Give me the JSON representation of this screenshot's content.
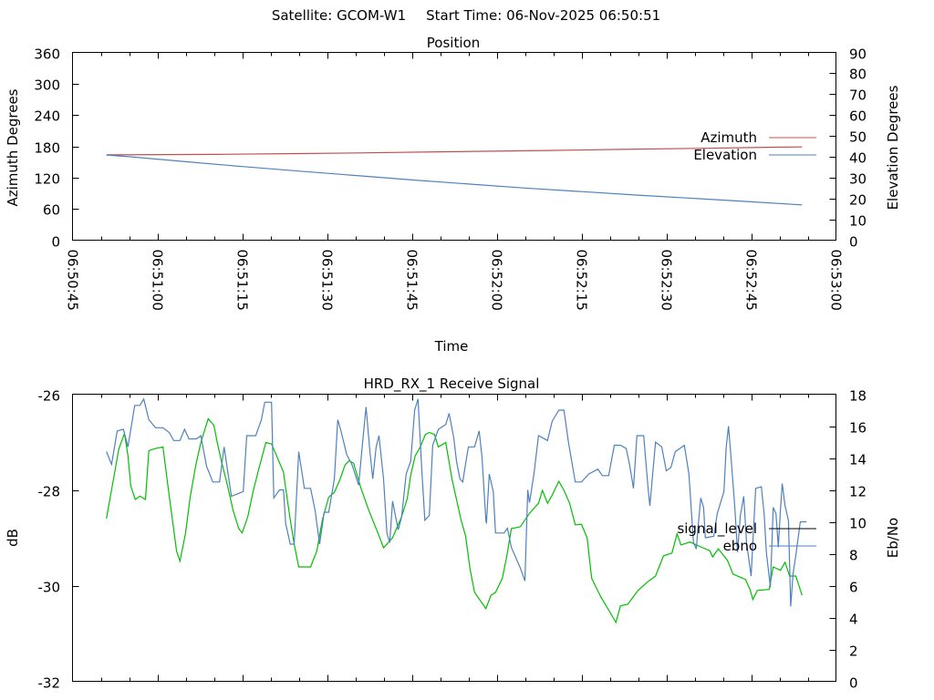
{
  "header": {
    "satellite_label": "Satellite: GCOM-W1",
    "start_time_label": "Start Time: 06-Nov-2025 06:50:51"
  },
  "chart_data": [
    {
      "type": "line",
      "title": "Position",
      "xlabel": "Time",
      "ylabel": "Azimuth Degrees",
      "y2label": "Elevation Degrees",
      "x_unit": "seconds after 06:50:45",
      "xlim": [
        0,
        135
      ],
      "ylim": [
        0,
        360
      ],
      "y2lim": [
        0,
        90
      ],
      "x_ticks": [
        {
          "t": 0,
          "label": "06:50:45"
        },
        {
          "t": 15,
          "label": "06:51:00"
        },
        {
          "t": 30,
          "label": "06:51:15"
        },
        {
          "t": 45,
          "label": "06:51:30"
        },
        {
          "t": 60,
          "label": "06:51:45"
        },
        {
          "t": 75,
          "label": "06:52:00"
        },
        {
          "t": 90,
          "label": "06:52:15"
        },
        {
          "t": 105,
          "label": "06:52:30"
        },
        {
          "t": 120,
          "label": "06:52:45"
        },
        {
          "t": 135,
          "label": "06:53:00"
        }
      ],
      "y_ticks": [
        "0",
        "60",
        "120",
        "180",
        "240",
        "300",
        "360"
      ],
      "y2_ticks": [
        "0",
        "10",
        "20",
        "30",
        "40",
        "50",
        "60",
        "70",
        "80",
        "90"
      ],
      "legend_position": "right",
      "grid": false,
      "series": [
        {
          "name": "Azimuth",
          "axis": "y",
          "color": "#c0504d",
          "x": [
            6,
            25,
            40,
            52,
            66,
            84,
            97,
            110,
            123,
            129
          ],
          "values": [
            163.5,
            164.5,
            166,
            167.5,
            169.5,
            172,
            174,
            176,
            178,
            178.7
          ]
        },
        {
          "name": "Elevation",
          "axis": "y2",
          "color": "#4f81bd",
          "x": [
            6,
            10,
            20,
            30,
            40,
            50,
            60,
            70,
            80,
            90,
            100,
            110,
            120,
            129
          ],
          "values": [
            40.8,
            40.0,
            37.6,
            35.3,
            33.1,
            31.0,
            28.9,
            26.9,
            25.0,
            23.3,
            21.6,
            20.0,
            18.4,
            16.9
          ]
        }
      ]
    },
    {
      "type": "line",
      "title": "HRD_RX_1 Receive Signal",
      "xlabel": "",
      "ylabel": "dB",
      "y2label": "Eb/No",
      "x_unit": "seconds after 06:50:45",
      "xlim": [
        0,
        135
      ],
      "ylim": [
        -32,
        -26
      ],
      "y2lim": [
        0,
        18
      ],
      "y_ticks": [
        "-32",
        "-30",
        "-28",
        "-26"
      ],
      "y2_ticks": [
        "0",
        "2",
        "4",
        "6",
        "8",
        "10",
        "12",
        "14",
        "16",
        "18"
      ],
      "legend_position": "right",
      "grid": false,
      "series": [
        {
          "name": "signal_level",
          "axis": "y",
          "color": "#00c000",
          "legend_color": "#000000",
          "x": [
            6.0,
            6.6,
            7.4,
            8.2,
            9.2,
            9.8,
            10.3,
            11.1,
            11.9,
            12.9,
            13.5,
            14.4,
            16.0,
            16.8,
            17.6,
            18.4,
            19.0,
            20.0,
            20.8,
            21.8,
            22.7,
            24.0,
            25.0,
            25.6,
            26.3,
            27.3,
            28.4,
            29.4,
            30.0,
            31.0,
            31.9,
            32.9,
            34.2,
            35.2,
            36.1,
            37.3,
            37.7,
            38.5,
            39.2,
            40.0,
            42.1,
            43.2,
            44.2,
            45.3,
            46.3,
            47.3,
            48.2,
            48.9,
            49.7,
            51.0,
            52.4,
            54.0,
            55.0,
            56.6,
            58.2,
            59.2,
            59.8,
            60.6,
            61.5,
            62.4,
            63.1,
            64.0,
            64.7,
            66.0,
            67.1,
            68.7,
            69.5,
            70.3,
            71.1,
            73.1,
            74.0,
            74.8,
            76.0,
            76.8,
            77.6,
            79.2,
            80.8,
            82.4,
            83.1,
            84.0,
            84.8,
            86.0,
            86.9,
            87.9,
            88.9,
            90.0,
            91.0,
            91.8,
            93.4,
            95.3,
            96.1,
            96.9,
            98.2,
            100.0,
            101.8,
            103.1,
            104.5,
            106.0,
            106.9,
            107.6,
            109.2,
            111.1,
            112.7,
            113.2,
            114.2,
            115.8,
            116.8,
            119.0,
            119.8,
            120.3,
            121.1,
            123.2,
            123.9,
            125.2,
            126.0,
            126.8,
            127.9,
            129.0
          ],
          "values": [
            -28.6,
            -28.2,
            -27.67,
            -27.14,
            -26.82,
            -27.29,
            -27.92,
            -28.2,
            -28.13,
            -28.2,
            -27.18,
            -27.14,
            -27.1,
            -27.86,
            -28.56,
            -29.28,
            -29.49,
            -28.9,
            -28.15,
            -27.48,
            -27.01,
            -26.51,
            -26.65,
            -27.01,
            -27.39,
            -27.86,
            -28.43,
            -28.81,
            -28.9,
            -28.56,
            -28.05,
            -27.58,
            -27.01,
            -27.04,
            -27.29,
            -27.63,
            -27.96,
            -28.62,
            -29.13,
            -29.61,
            -29.61,
            -29.28,
            -28.62,
            -28.15,
            -28.05,
            -27.78,
            -27.48,
            -27.39,
            -27.44,
            -27.96,
            -28.43,
            -28.9,
            -29.21,
            -29.0,
            -28.56,
            -28.18,
            -27.69,
            -27.29,
            -27.1,
            -26.84,
            -26.8,
            -26.84,
            -27.1,
            -27.01,
            -27.77,
            -28.62,
            -28.96,
            -29.66,
            -30.14,
            -30.48,
            -30.2,
            -30.14,
            -29.85,
            -29.38,
            -28.81,
            -28.77,
            -28.49,
            -28.28,
            -28.01,
            -28.28,
            -28.11,
            -27.82,
            -28.01,
            -28.28,
            -28.73,
            -28.72,
            -29.0,
            -29.85,
            -30.23,
            -30.61,
            -30.77,
            -30.42,
            -30.39,
            -30.1,
            -29.91,
            -29.8,
            -29.38,
            -29.32,
            -28.92,
            -29.15,
            -29.09,
            -29.19,
            -29.27,
            -29.4,
            -29.23,
            -29.47,
            -29.76,
            -29.87,
            -30.08,
            -30.29,
            -30.1,
            -30.08,
            -29.61,
            -29.68,
            -29.51,
            -29.8,
            -29.8,
            -30.2
          ]
        },
        {
          "name": "ebno",
          "axis": "y2",
          "color": "#4f81bd",
          "legend_color": "#4f81bd",
          "x": [
            6.0,
            6.9,
            7.9,
            9.0,
            9.8,
            11.0,
            11.9,
            12.6,
            13.5,
            14.7,
            16.0,
            17.1,
            17.9,
            19.0,
            19.8,
            20.6,
            21.9,
            22.7,
            23.7,
            24.8,
            26.0,
            26.8,
            28.1,
            30.2,
            30.8,
            32.4,
            33.4,
            34.0,
            35.2,
            35.6,
            36.6,
            37.3,
            37.7,
            38.5,
            39.2,
            40.0,
            41.0,
            42.1,
            42.9,
            43.7,
            44.5,
            45.3,
            46.3,
            46.9,
            47.4,
            48.5,
            49.4,
            50.6,
            51.3,
            51.9,
            52.6,
            53.1,
            53.7,
            54.2,
            55.0,
            55.6,
            56.1,
            56.6,
            57.6,
            58.2,
            59.0,
            59.8,
            60.5,
            61.1,
            61.8,
            62.3,
            63.1,
            63.7,
            64.7,
            66.0,
            66.6,
            67.4,
            67.9,
            68.5,
            69.0,
            70.0,
            71.1,
            71.9,
            72.4,
            73.1,
            73.2,
            73.7,
            74.4,
            74.8,
            76.3,
            76.9,
            77.6,
            79.2,
            80.0,
            80.5,
            80.8,
            81.6,
            82.4,
            84.0,
            84.8,
            86.0,
            86.9,
            87.7,
            88.9,
            90.0,
            91.3,
            92.9,
            93.7,
            94.8,
            95.8,
            96.9,
            97.9,
            98.5,
            99.2,
            99.8,
            101.0,
            101.8,
            102.1,
            102.6,
            103.1,
            104.2,
            105.0,
            105.8,
            106.6,
            108.2,
            109.0,
            109.8,
            110.3,
            110.6,
            111.1,
            111.6,
            111.9,
            113.4,
            114.0,
            115.2,
            115.6,
            116.0,
            116.5,
            117.1,
            117.6,
            118.1,
            118.7,
            119.2,
            120.0,
            120.3,
            120.8,
            121.8,
            122.3,
            122.7,
            123.4,
            123.9,
            124.4,
            124.8,
            125.2,
            125.5,
            126.0,
            126.6,
            127.0,
            127.4,
            127.9,
            128.7,
            129.8
          ],
          "values": [
            14.4,
            13.6,
            15.7,
            15.8,
            14.7,
            17.3,
            17.3,
            17.7,
            16.4,
            15.9,
            15.9,
            15.6,
            15.1,
            15.1,
            15.8,
            15.2,
            15.2,
            15.4,
            13.5,
            12.5,
            12.5,
            14.7,
            11.6,
            11.9,
            15.4,
            15.4,
            16.4,
            17.5,
            17.5,
            11.5,
            12.0,
            12.0,
            9.9,
            8.6,
            8.6,
            14.4,
            12.1,
            12.1,
            10.7,
            8.6,
            10.6,
            10.6,
            12.7,
            16.4,
            15.8,
            14.2,
            13.6,
            12.3,
            15.0,
            17.2,
            14.4,
            12.7,
            14.7,
            15.4,
            12.7,
            9.3,
            8.7,
            11.3,
            9.5,
            10.3,
            13.0,
            13.8,
            17.0,
            17.7,
            13.0,
            10.1,
            10.4,
            14.8,
            15.8,
            16.1,
            16.8,
            15.3,
            13.8,
            12.7,
            12.5,
            14.7,
            14.7,
            15.7,
            14.1,
            10.1,
            9.9,
            13.0,
            11.9,
            9.3,
            9.3,
            9.6,
            8.4,
            7.1,
            6.3,
            12.0,
            11.2,
            13.0,
            15.4,
            15.1,
            16.3,
            17.0,
            17.0,
            15.0,
            12.5,
            12.5,
            13.0,
            13.3,
            12.9,
            12.9,
            14.8,
            14.8,
            14.6,
            13.6,
            12.1,
            15.4,
            15.4,
            12.0,
            11.0,
            13.0,
            15.0,
            14.7,
            13.2,
            13.4,
            14.4,
            14.8,
            13.0,
            8.7,
            8.3,
            9.6,
            11.5,
            10.9,
            9.0,
            9.1,
            10.5,
            11.9,
            14.7,
            16.0,
            13.8,
            11.0,
            8.1,
            10.4,
            11.6,
            8.7,
            6.6,
            8.7,
            12.1,
            12.2,
            10.5,
            8.1,
            5.9,
            10.9,
            10.5,
            8.4,
            10.8,
            12.4,
            11.0,
            10.1,
            4.7,
            6.7,
            7.9,
            10.0,
            10.0
          ]
        }
      ]
    }
  ]
}
